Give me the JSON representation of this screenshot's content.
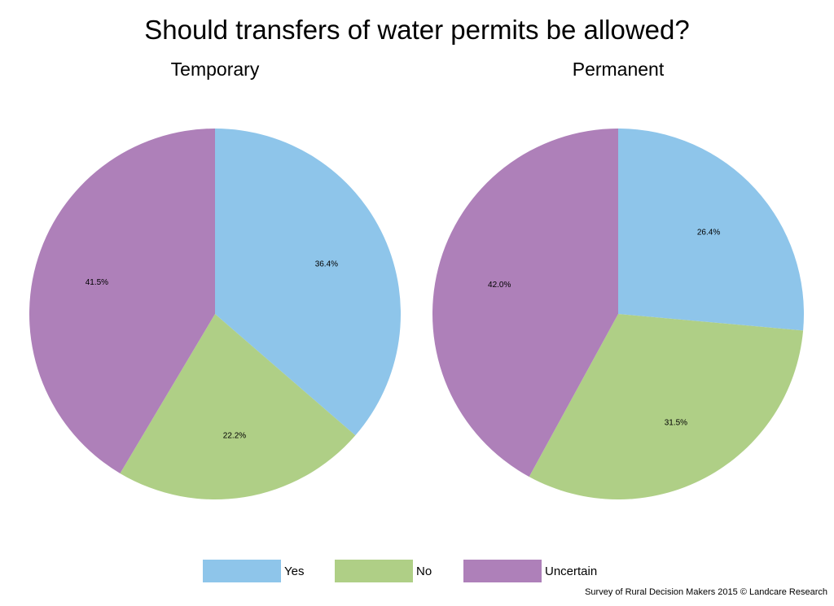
{
  "chart_data": [
    {
      "type": "pie",
      "title": "Should transfers of water permits be allowed?",
      "subtitle": "Temporary",
      "categories": [
        "Yes",
        "No",
        "Uncertain"
      ],
      "values": [
        36.4,
        22.2,
        41.5
      ],
      "labels": [
        "36.4%",
        "22.2%",
        "41.5%"
      ],
      "colors": [
        "#8ec5ea",
        "#afcf86",
        "#ae80b9"
      ]
    },
    {
      "type": "pie",
      "title": "Should transfers of water permits be allowed?",
      "subtitle": "Permanent",
      "categories": [
        "Yes",
        "No",
        "Uncertain"
      ],
      "values": [
        26.4,
        31.5,
        42.0
      ],
      "labels": [
        "26.4%",
        "31.5%",
        "42.0%"
      ],
      "colors": [
        "#8ec5ea",
        "#afcf86",
        "#ae80b9"
      ]
    }
  ],
  "title": "Should transfers of water permits be allowed?",
  "legend": {
    "position": "bottom",
    "items": [
      {
        "label": "Yes",
        "color": "#8ec5ea"
      },
      {
        "label": "No",
        "color": "#afcf86"
      },
      {
        "label": "Uncertain",
        "color": "#ae80b9"
      }
    ]
  },
  "source": "Survey of Rural Decision Makers 2015 © Landcare Research"
}
